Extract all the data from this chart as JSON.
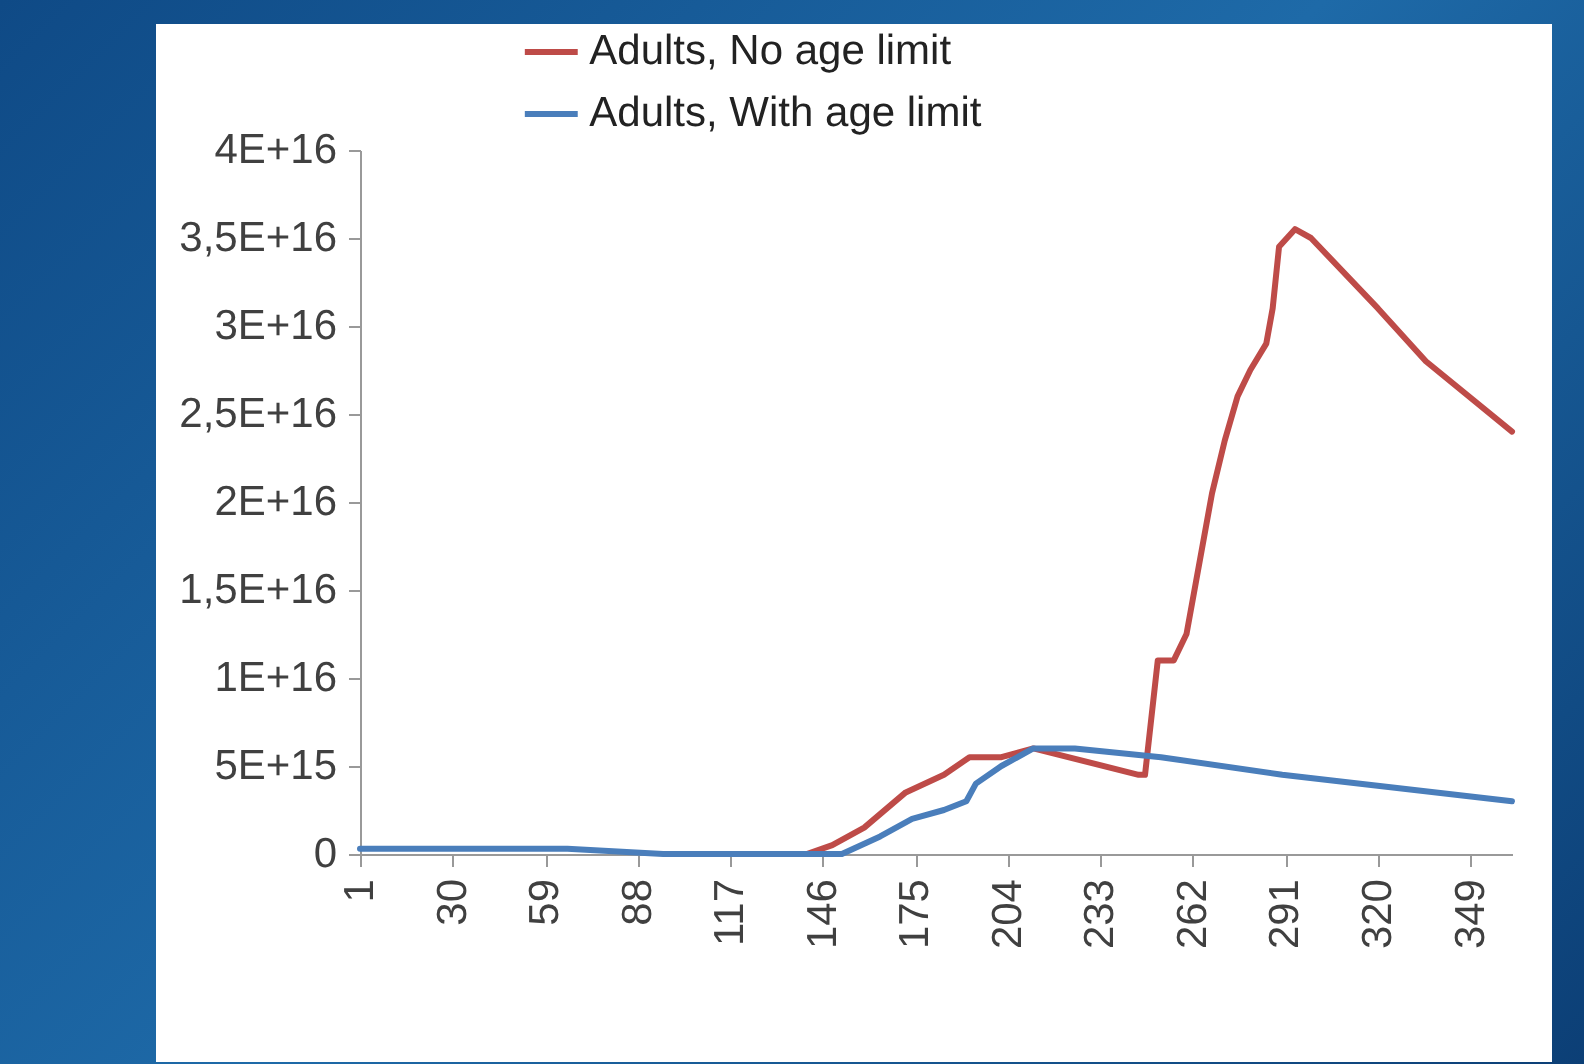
{
  "chart_data": {
    "type": "line",
    "series": [
      {
        "name": "Adults, No age limit",
        "color": "#be4b48",
        "x": [
          141,
          149,
          159,
          172,
          184,
          192,
          202,
          212,
          245,
          247,
          251,
          256,
          260,
          263,
          268,
          272,
          276,
          280,
          285,
          287,
          289,
          294,
          299,
          320,
          335,
          362
        ],
        "values": [
          0,
          500000000000000.0,
          1500000000000000.0,
          3500000000000000.0,
          4500000000000000.0,
          5500000000000000.0,
          5500000000000000.0,
          6000000000000000.0,
          4500000000000000.0,
          4500000000000000.0,
          1.1e+16,
          1.1e+16,
          1.25e+16,
          1.55e+16,
          2.05e+16,
          2.35e+16,
          2.6e+16,
          2.75e+16,
          2.9e+16,
          3.1e+16,
          3.45e+16,
          3.55e+16,
          3.5e+16,
          3.1e+16,
          2.8e+16,
          2.4e+16
        ]
      },
      {
        "name": "Adults, With age limit",
        "color": "#4a7ebb",
        "x": [
          1,
          66,
          96,
          139,
          152,
          164,
          174,
          184,
          191,
          194,
          202,
          212,
          225,
          252,
          290,
          362
        ],
        "values": [
          300000000000000.0,
          300000000000000.0,
          0,
          0,
          0,
          1000000000000000.0,
          2000000000000000.0,
          2500000000000000.0,
          3000000000000000.0,
          4000000000000000.0,
          5000000000000000.0,
          6000000000000000.0,
          6000000000000000.0,
          5500000000000000.0,
          4500000000000000.0,
          3000000000000000.0
        ]
      }
    ],
    "xlim": [
      1,
      362
    ],
    "xticks": [
      1,
      30,
      59,
      88,
      117,
      146,
      175,
      204,
      233,
      262,
      291,
      320,
      349
    ],
    "ylim": [
      0,
      4e+16
    ],
    "yticks": [
      0,
      {
        "value": 5000000000000000.0,
        "label": "5E+15"
      },
      {
        "value": 1e+16,
        "label": "1E+16"
      },
      {
        "value": 1.5e+16,
        "label": "1,5E+16"
      },
      {
        "value": 2e+16,
        "label": "2E+16"
      },
      {
        "value": 2.5e+16,
        "label": "2,5E+16"
      },
      {
        "value": 3e+16,
        "label": "3E+16"
      },
      {
        "value": 3.5e+16,
        "label": "3,5E+16"
      },
      {
        "value": 4e+16,
        "label": "4E+16"
      }
    ],
    "legend": "top",
    "grid": false
  }
}
